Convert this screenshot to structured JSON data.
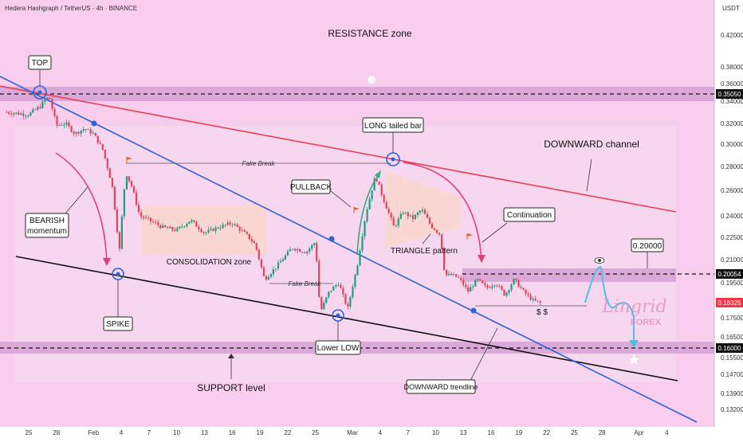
{
  "header": {
    "symbol_line": "Hedera Hashgraph / TetherUS · 4h · BINANCE",
    "currency": "USDT"
  },
  "chart_data": {
    "type": "candlestick",
    "ylim": [
      0.125,
      0.445
    ],
    "yticks": [
      0.42,
      0.38,
      0.36,
      0.34,
      0.32,
      0.3,
      0.28,
      0.26,
      0.24,
      0.225,
      0.21,
      0.195,
      0.175,
      0.165,
      0.155,
      0.147,
      0.139,
      0.132
    ],
    "ytick_labels": [
      "0.42000",
      "0.38000",
      "0.36000",
      "0.34000",
      "0.32000",
      "0.30000",
      "0.28000",
      "0.26000",
      "0.24000",
      "0.22500",
      "0.21000",
      "0.19500",
      "0.17500",
      "0.16500",
      "0.15500",
      "0.14700",
      "0.13900",
      "0.13200"
    ],
    "xticks": [
      {
        "label": "25",
        "t": 0
      },
      {
        "label": "28",
        "t": 3
      },
      {
        "label": "Feb",
        "t": 7
      },
      {
        "label": "4",
        "t": 10
      },
      {
        "label": "7",
        "t": 13
      },
      {
        "label": "10",
        "t": 16
      },
      {
        "label": "13",
        "t": 19
      },
      {
        "label": "16",
        "t": 22
      },
      {
        "label": "19",
        "t": 25
      },
      {
        "label": "22",
        "t": 28
      },
      {
        "label": "25",
        "t": 31
      },
      {
        "label": "Mar",
        "t": 35
      },
      {
        "label": "4",
        "t": 38
      },
      {
        "label": "7",
        "t": 41
      },
      {
        "label": "10",
        "t": 44
      },
      {
        "label": "13",
        "t": 47
      },
      {
        "label": "16",
        "t": 50
      },
      {
        "label": "19",
        "t": 53
      },
      {
        "label": "22",
        "t": 56
      },
      {
        "label": "25",
        "t": 59
      },
      {
        "label": "28",
        "t": 62
      },
      {
        "label": "Apr",
        "t": 66
      },
      {
        "label": "4",
        "t": 69
      }
    ],
    "price_path": [
      [
        -2.4,
        0.33
      ],
      [
        0.0,
        0.328
      ],
      [
        1.2,
        0.335
      ],
      [
        2.2,
        0.345
      ],
      [
        3.0,
        0.318
      ],
      [
        4.0,
        0.32
      ],
      [
        5.0,
        0.31
      ],
      [
        6.0,
        0.315
      ],
      [
        7.0,
        0.31
      ],
      [
        8.0,
        0.295
      ],
      [
        9.0,
        0.265
      ],
      [
        9.8,
        0.215
      ],
      [
        10.5,
        0.275
      ],
      [
        11.2,
        0.262
      ],
      [
        12.0,
        0.24
      ],
      [
        13.0,
        0.237
      ],
      [
        14.5,
        0.232
      ],
      [
        16.0,
        0.23
      ],
      [
        17.5,
        0.237
      ],
      [
        19.0,
        0.228
      ],
      [
        20.5,
        0.232
      ],
      [
        22.0,
        0.235
      ],
      [
        23.5,
        0.227
      ],
      [
        24.5,
        0.22
      ],
      [
        25.5,
        0.197
      ],
      [
        27.0,
        0.207
      ],
      [
        28.5,
        0.218
      ],
      [
        30.0,
        0.215
      ],
      [
        31.0,
        0.222
      ],
      [
        31.5,
        0.178
      ],
      [
        32.5,
        0.19
      ],
      [
        33.5,
        0.195
      ],
      [
        34.5,
        0.18
      ],
      [
        35.5,
        0.205
      ],
      [
        36.5,
        0.243
      ],
      [
        37.5,
        0.272
      ],
      [
        38.5,
        0.25
      ],
      [
        39.5,
        0.232
      ],
      [
        40.5,
        0.243
      ],
      [
        41.5,
        0.238
      ],
      [
        42.5,
        0.245
      ],
      [
        43.5,
        0.233
      ],
      [
        44.5,
        0.227
      ],
      [
        45.0,
        0.2
      ],
      [
        45.8,
        0.2
      ],
      [
        46.5,
        0.198
      ],
      [
        47.5,
        0.19
      ],
      [
        48.5,
        0.197
      ],
      [
        49.5,
        0.192
      ],
      [
        50.5,
        0.195
      ],
      [
        51.5,
        0.188
      ],
      [
        52.5,
        0.197
      ],
      [
        53.5,
        0.19
      ],
      [
        54.5,
        0.185
      ],
      [
        55.5,
        0.183
      ]
    ],
    "current_price": "0.18325",
    "levels": [
      {
        "name": "resistance",
        "value": 0.3505,
        "label": "0.35050"
      },
      {
        "name": "mid",
        "value": 0.20054,
        "label": "0.20054"
      },
      {
        "name": "support",
        "value": 0.16,
        "label": "0.16000"
      }
    ],
    "target_label": "0.20000"
  },
  "annotations": {
    "resistance_zone": "RESISTANCE zone",
    "top": "TOP",
    "long_tailed_bar": "LONG tailed bar",
    "downward_channel": "DOWNWARD channel",
    "bearish_line1": "BEARISH",
    "bearish_line2": "momentum",
    "fake_break": "Fake Break",
    "fake_break_2": "Fake Break",
    "pullback": "PULLBACK",
    "continuation": "Continuation",
    "consolidation_zone": "CONSOLIDATION zone",
    "triangle_pattern": "TRIANGLE pattern",
    "dollars": "$ $",
    "spike": "SPIKE",
    "lower_low": "Lower LOW",
    "downward_trendline": "DOWNWARD trendline",
    "support_level": "SUPPORT level",
    "watermark_top": "Lingrid",
    "watermark_bottom": "FOREX"
  },
  "colors": {
    "background_pink": "#f8c8ec",
    "band": "#d9a6d8",
    "channel_top": "#e8404f",
    "trendline": "#2e62d9",
    "channel_bottom": "#111111",
    "arrow_pink": "#e0407a",
    "arrow_teal": "#3aa87a",
    "forecast": "#4cc3dc",
    "current_price_bg": "#f23645"
  }
}
